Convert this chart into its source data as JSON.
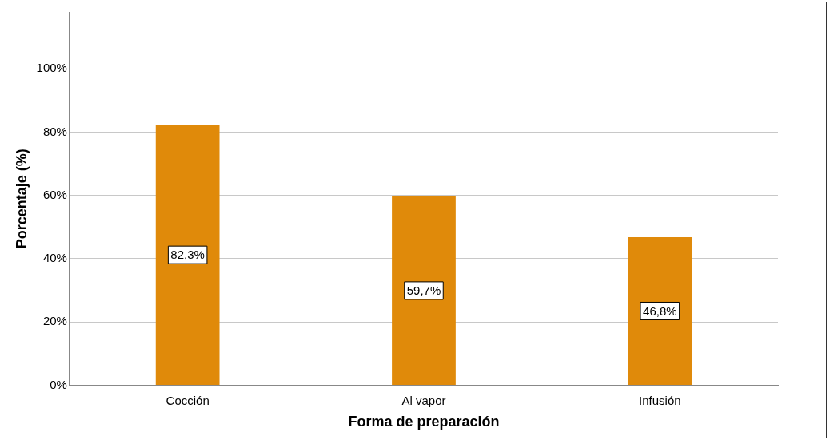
{
  "chart_data": {
    "type": "bar",
    "xlabel": "Forma de preparación",
    "ylabel": "Porcentaje (%)",
    "categories": [
      "Cocción",
      "Al vapor",
      "Infusión"
    ],
    "values": [
      82.3,
      59.7,
      46.8
    ],
    "value_labels": [
      "82,3%",
      "59,7%",
      "46,8%"
    ],
    "color": "#e08a0a",
    "ylim": [
      0,
      118
    ],
    "yticks": [
      {
        "value": 0,
        "label": "0%"
      },
      {
        "value": 20,
        "label": "20%"
      },
      {
        "value": 40,
        "label": "40%"
      },
      {
        "value": 60,
        "label": "60%"
      },
      {
        "value": 80,
        "label": "80%"
      },
      {
        "value": 100,
        "label": "100%"
      }
    ],
    "grid": "y",
    "legend": false
  }
}
